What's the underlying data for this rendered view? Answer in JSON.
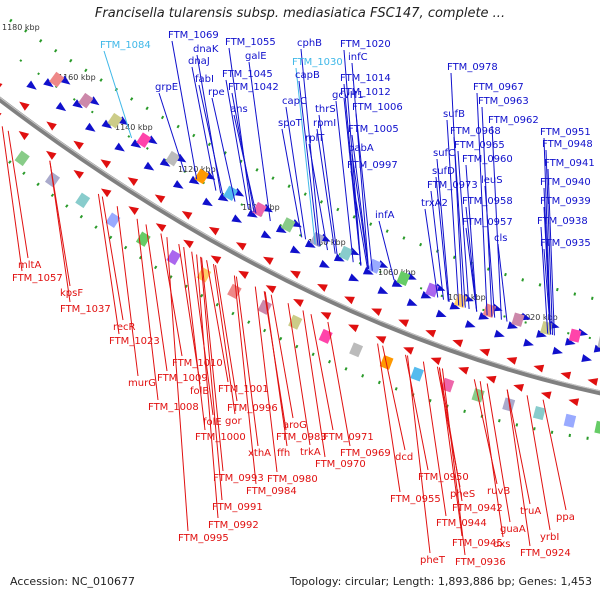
{
  "title": "Francisella tularensis subsp. mediasiatica FSC147, complete ...",
  "footer": {
    "accession": "Accession: NC_010677",
    "summary": "Topology: circular; Length: 1,893,886 bp; Genes: 1,453"
  },
  "colors": {
    "forward": "#1010cc",
    "reverse": "#e01010",
    "highlight": "#40b8e8",
    "backbone": "#808080",
    "tick": "#2a9a2a"
  },
  "kbp_labels": [
    "1180 kbp",
    "1160 kbp",
    "1140 kbp",
    "1120 kbp",
    "1100 kbp",
    "1080 kbp",
    "1060 kbp",
    "1040 kbp",
    "1020 kbp"
  ],
  "forward_labels": [
    "FTM_1084",
    "FTM_1069",
    "dnaK",
    "dnaJ",
    "grpE",
    "fabI",
    "rpe",
    "FTM_1055",
    "galE",
    "FTM_1045",
    "FTM_1042",
    "ans",
    "cphB",
    "FTM_1030",
    "capB",
    "capC",
    "spoT",
    "FTM_1020",
    "infC",
    "FTM_1014",
    "gcvH1",
    "FTM_1012",
    "thrS",
    "rpmI",
    "rplT",
    "FTM_1006",
    "FTM_1005",
    "pabA",
    "FTM_0997",
    "infA",
    "FTM_0978",
    "FTM_0967",
    "FTM_0963",
    "sufB",
    "FTM_0962",
    "FTM_0968",
    "FTM_0965",
    "sufC",
    "FTM_0960",
    "sufD",
    "FTM_0973",
    "leuS",
    "trxA2",
    "FTM_0958",
    "FTM_0957",
    "cls",
    "FTM_0951",
    "FTM_0948",
    "FTM_0941",
    "FTM_0940",
    "FTM_0939",
    "FTM_0938",
    "FTM_0935"
  ],
  "reverse_labels": [
    "mltA",
    "FTM_1057",
    "kpsF",
    "FTM_1037",
    "recR",
    "FTM_1023",
    "FTM_1010",
    "murG",
    "FTM_1009",
    "folB",
    "FTM_1008",
    "FTM_1001",
    "FTM_0996",
    "folE",
    "gor",
    "FTM_1000",
    "aroG",
    "FTM_0983",
    "xthA",
    "ffh",
    "trkA",
    "FTM_0971",
    "FTM_0969",
    "FTM_0970",
    "FTM_0993",
    "FTM_0980",
    "FTM_0984",
    "dcd",
    "FTM_0991",
    "FTM_0992",
    "FTM_0995",
    "FTM_0955",
    "FTM_0950",
    "pheS",
    "ruvB",
    "FTM_0942",
    "FTM_0944",
    "truA",
    "guaA",
    "ppa",
    "FTM_0945",
    "dxs",
    "yrbI",
    "pheT",
    "FTM_0936",
    "FTM_0924"
  ]
}
